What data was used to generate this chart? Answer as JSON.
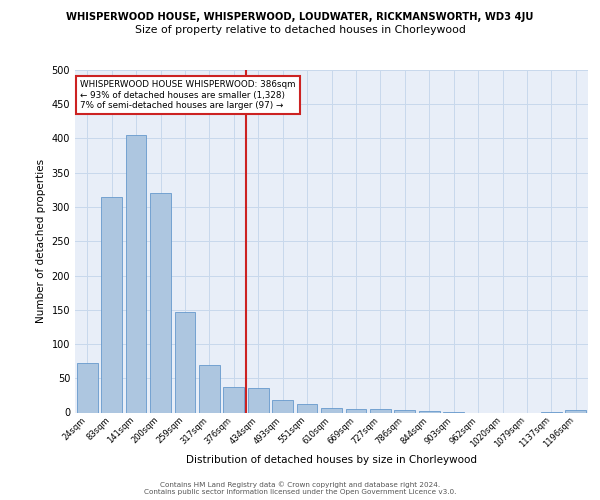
{
  "title_line1": "WHISPERWOOD HOUSE, WHISPERWOOD, LOUDWATER, RICKMANSWORTH, WD3 4JU",
  "title_line2": "Size of property relative to detached houses in Chorleywood",
  "xlabel": "Distribution of detached houses by size in Chorleywood",
  "ylabel": "Number of detached properties",
  "footer_line1": "Contains HM Land Registry data © Crown copyright and database right 2024.",
  "footer_line2": "Contains public sector information licensed under the Open Government Licence v3.0.",
  "bar_labels": [
    "24sqm",
    "83sqm",
    "141sqm",
    "200sqm",
    "259sqm",
    "317sqm",
    "376sqm",
    "434sqm",
    "493sqm",
    "551sqm",
    "610sqm",
    "669sqm",
    "727sqm",
    "786sqm",
    "844sqm",
    "903sqm",
    "962sqm",
    "1020sqm",
    "1079sqm",
    "1137sqm",
    "1196sqm"
  ],
  "bar_values": [
    72,
    314,
    405,
    320,
    146,
    70,
    37,
    36,
    18,
    12,
    7,
    5,
    5,
    3,
    2,
    1,
    0,
    0,
    0,
    1,
    4
  ],
  "bar_color": "#adc6e0",
  "bar_edge_color": "#6699cc",
  "grid_color": "#c8d8ec",
  "background_color": "#e8eef8",
  "vline_color": "#cc2222",
  "annotation_text": "WHISPERWOOD HOUSE WHISPERWOOD: 386sqm\n← 93% of detached houses are smaller (1,328)\n7% of semi-detached houses are larger (97) →",
  "annotation_box_color": "#cc2222",
  "ylim": [
    0,
    500
  ],
  "yticks": [
    0,
    50,
    100,
    150,
    200,
    250,
    300,
    350,
    400,
    450,
    500
  ],
  "vline_bar_index": 6
}
